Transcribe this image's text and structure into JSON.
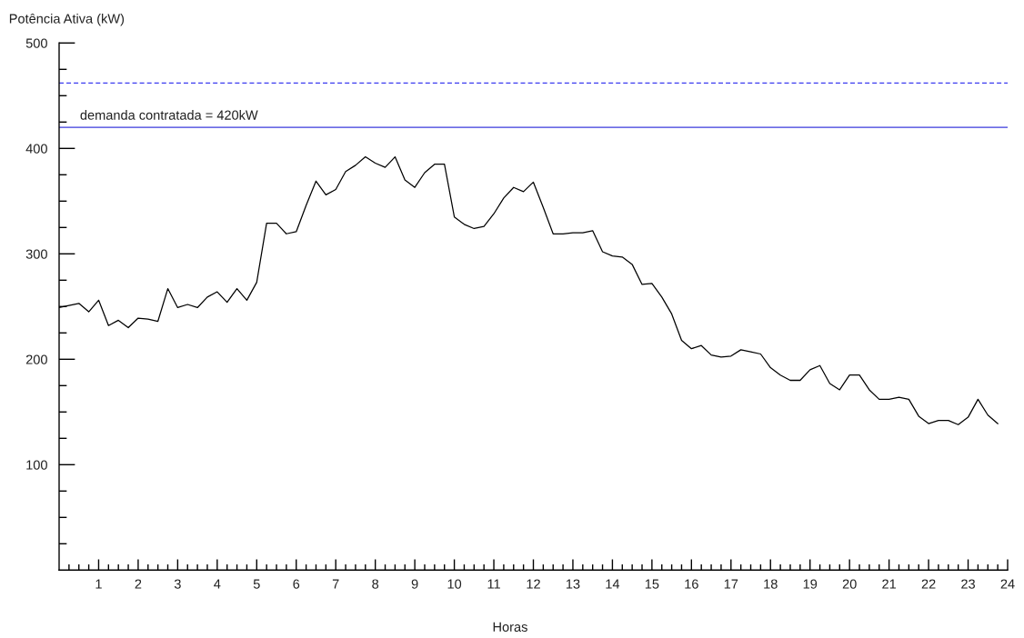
{
  "chart_data": {
    "type": "line",
    "xlabel": "Horas",
    "ylabel": "Potência Ativa (kW)",
    "x": [
      0,
      0.25,
      0.5,
      0.75,
      1,
      1.25,
      1.5,
      1.75,
      2,
      2.25,
      2.5,
      2.75,
      3,
      3.25,
      3.5,
      3.75,
      4,
      4.25,
      4.5,
      4.75,
      5,
      5.25,
      5.5,
      5.75,
      6,
      6.25,
      6.5,
      6.75,
      7,
      7.25,
      7.5,
      7.75,
      8,
      8.25,
      8.5,
      8.75,
      9,
      9.25,
      9.5,
      9.75,
      10,
      10.25,
      10.5,
      10.75,
      11,
      11.25,
      11.5,
      11.75,
      12,
      12.25,
      12.5,
      12.75,
      13,
      13.25,
      13.5,
      13.75,
      14,
      14.25,
      14.5,
      14.75,
      15,
      15.25,
      15.5,
      15.75,
      16,
      16.25,
      16.5,
      16.75,
      17,
      17.25,
      17.5,
      17.75,
      18,
      18.25,
      18.5,
      18.75,
      19,
      19.25,
      19.5,
      19.75,
      20,
      20.25,
      20.5,
      20.75,
      21,
      21.25,
      21.5,
      21.75,
      22,
      22.25,
      22.5,
      22.75,
      23,
      23.25,
      23.5,
      23.75
    ],
    "series": [
      {
        "color": "#000000",
        "values": [
          249,
          251,
          253,
          245,
          256,
          232,
          237,
          230,
          239,
          238,
          236,
          267,
          249,
          252,
          249,
          259,
          264,
          254,
          267,
          256,
          273,
          329,
          329,
          319,
          321,
          346,
          369,
          356,
          361,
          378,
          384,
          392,
          386,
          382,
          392,
          370,
          363,
          377,
          385,
          385,
          335,
          328,
          324,
          326,
          338,
          353,
          363,
          359,
          368,
          344,
          319,
          319,
          320,
          320,
          322,
          302,
          298,
          297,
          290,
          271,
          272,
          259,
          243,
          218,
          210,
          213,
          204,
          202,
          203,
          209,
          207,
          205,
          192,
          185,
          180,
          180,
          190,
          194,
          177,
          171,
          185,
          185,
          171,
          162,
          162,
          164,
          162,
          146,
          139,
          142,
          142,
          138,
          145,
          162,
          147,
          139
        ]
      }
    ],
    "xlim": [
      0,
      24
    ],
    "ylim": [
      0,
      500
    ],
    "xticks": [
      {
        "value": 0.25,
        "label": null
      },
      {
        "value": 0.5,
        "label": null
      },
      {
        "value": 0.75,
        "label": null
      },
      1,
      {
        "value": 1.25,
        "label": null
      },
      {
        "value": 1.5,
        "label": null
      },
      {
        "value": 1.75,
        "label": null
      },
      2,
      {
        "value": 2.25,
        "label": null
      },
      {
        "value": 2.5,
        "label": null
      },
      {
        "value": 2.75,
        "label": null
      },
      3,
      {
        "value": 3.25,
        "label": null
      },
      {
        "value": 3.5,
        "label": null
      },
      {
        "value": 3.75,
        "label": null
      },
      4,
      {
        "value": 4.25,
        "label": null
      },
      {
        "value": 4.5,
        "label": null
      },
      {
        "value": 4.75,
        "label": null
      },
      5,
      {
        "value": 5.25,
        "label": null
      },
      {
        "value": 5.5,
        "label": null
      },
      {
        "value": 5.75,
        "label": null
      },
      6,
      {
        "value": 6.25,
        "label": null
      },
      {
        "value": 6.5,
        "label": null
      },
      {
        "value": 6.75,
        "label": null
      },
      7,
      {
        "value": 7.25,
        "label": null
      },
      {
        "value": 7.5,
        "label": null
      },
      {
        "value": 7.75,
        "label": null
      },
      8,
      {
        "value": 8.25,
        "label": null
      },
      {
        "value": 8.5,
        "label": null
      },
      {
        "value": 8.75,
        "label": null
      },
      9,
      {
        "value": 9.25,
        "label": null
      },
      {
        "value": 9.5,
        "label": null
      },
      {
        "value": 9.75,
        "label": null
      },
      10,
      {
        "value": 10.25,
        "label": null
      },
      {
        "value": 10.5,
        "label": null
      },
      {
        "value": 10.75,
        "label": null
      },
      11,
      {
        "value": 11.25,
        "label": null
      },
      {
        "value": 11.5,
        "label": null
      },
      {
        "value": 11.75,
        "label": null
      },
      12,
      {
        "value": 12.25,
        "label": null
      },
      {
        "value": 12.5,
        "label": null
      },
      {
        "value": 12.75,
        "label": null
      },
      13,
      {
        "value": 13.25,
        "label": null
      },
      {
        "value": 13.5,
        "label": null
      },
      {
        "value": 13.75,
        "label": null
      },
      14,
      {
        "value": 14.25,
        "label": null
      },
      {
        "value": 14.5,
        "label": null
      },
      {
        "value": 14.75,
        "label": null
      },
      15,
      {
        "value": 15.25,
        "label": null
      },
      {
        "value": 15.5,
        "label": null
      },
      {
        "value": 15.75,
        "label": null
      },
      16,
      {
        "value": 16.25,
        "label": null
      },
      {
        "value": 16.5,
        "label": null
      },
      {
        "value": 16.75,
        "label": null
      },
      17,
      {
        "value": 17.25,
        "label": null
      },
      {
        "value": 17.5,
        "label": null
      },
      {
        "value": 17.75,
        "label": null
      },
      18,
      {
        "value": 18.25,
        "label": null
      },
      {
        "value": 18.5,
        "label": null
      },
      {
        "value": 18.75,
        "label": null
      },
      19,
      {
        "value": 19.25,
        "label": null
      },
      {
        "value": 19.5,
        "label": null
      },
      {
        "value": 19.75,
        "label": null
      },
      20,
      {
        "value": 20.25,
        "label": null
      },
      {
        "value": 20.5,
        "label": null
      },
      {
        "value": 20.75,
        "label": null
      },
      21,
      {
        "value": 21.25,
        "label": null
      },
      {
        "value": 21.5,
        "label": null
      },
      {
        "value": 21.75,
        "label": null
      },
      22,
      {
        "value": 22.25,
        "label": null
      },
      {
        "value": 22.5,
        "label": null
      },
      {
        "value": 22.75,
        "label": null
      },
      23,
      {
        "value": 23.25,
        "label": null
      },
      {
        "value": 23.5,
        "label": null
      },
      {
        "value": 23.75,
        "label": null
      },
      24
    ],
    "yticks": [
      {
        "value": 25,
        "label": null
      },
      {
        "value": 50,
        "label": null
      },
      {
        "value": 75,
        "label": null
      },
      100,
      {
        "value": 125,
        "label": null
      },
      {
        "value": 150,
        "label": null
      },
      {
        "value": 175,
        "label": null
      },
      200,
      {
        "value": 225,
        "label": null
      },
      {
        "value": 250,
        "label": null
      },
      {
        "value": 275,
        "label": null
      },
      300,
      {
        "value": 325,
        "label": null
      },
      {
        "value": 350,
        "label": null
      },
      {
        "value": 375,
        "label": null
      },
      400,
      {
        "value": 425,
        "label": null
      },
      {
        "value": 450,
        "label": null
      },
      {
        "value": 475,
        "label": null
      },
      500
    ],
    "ref_lines": [
      {
        "axis": "y",
        "value": 462,
        "color": "#3b3bf0",
        "line_style": "dashed"
      },
      {
        "axis": "y",
        "value": 420,
        "label": "demanda contratada = 420kW",
        "color": "#3b3bdc",
        "line_style": "solid"
      }
    ],
    "line_style": "solid",
    "marker": "none"
  }
}
